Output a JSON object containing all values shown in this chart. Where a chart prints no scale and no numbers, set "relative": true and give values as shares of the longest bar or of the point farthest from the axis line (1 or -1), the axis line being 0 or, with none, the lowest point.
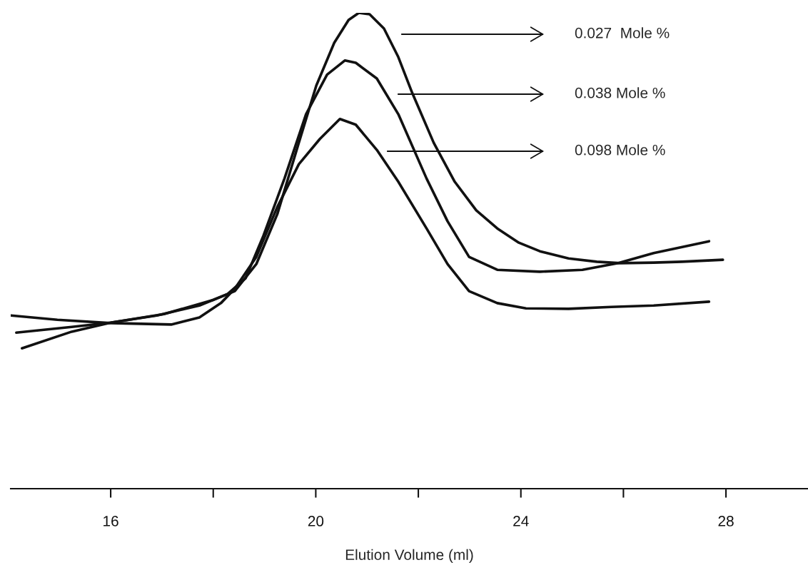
{
  "chart_data": {
    "type": "line",
    "relative": true,
    "xlabel": "Elution Volume (ml)",
    "xlim": [
      14.05,
      29.6
    ],
    "xticks": [
      {
        "value": 16,
        "label": "16"
      },
      {
        "value": 18,
        "label": null
      },
      {
        "value": 20,
        "label": "20"
      },
      {
        "value": 22,
        "label": null
      },
      {
        "value": 24,
        "label": "24"
      },
      {
        "value": 26,
        "label": null
      },
      {
        "value": 28,
        "label": "28"
      }
    ],
    "grid": false,
    "legend": false,
    "marker": "none",
    "line_style": "solid",
    "series": [
      {
        "color": "#111111",
        "x": [
          14.27,
          15.24,
          16,
          17.04,
          18.01,
          18.42,
          18.84,
          19.25,
          19.67,
          20.01,
          20.36,
          20.64,
          20.84,
          21.05,
          21.33,
          21.61,
          21.88,
          22.3,
          22.71,
          23.13,
          23.54,
          23.96,
          24.37,
          24.93,
          25.48,
          25.94,
          26.59,
          27.14,
          27.94
        ],
        "values": [
          0.295,
          0.33,
          0.349,
          0.367,
          0.397,
          0.415,
          0.472,
          0.577,
          0.727,
          0.847,
          0.937,
          0.985,
          1.0,
          0.997,
          0.967,
          0.907,
          0.832,
          0.727,
          0.645,
          0.585,
          0.547,
          0.517,
          0.499,
          0.484,
          0.477,
          0.474,
          0.475,
          0.477,
          0.481
        ]
      },
      {
        "color": "#111111",
        "x": [
          14.16,
          15.24,
          16,
          16.9,
          17.73,
          18.28,
          18.63,
          18.98,
          19.39,
          19.81,
          20.22,
          20.57,
          20.78,
          21.19,
          21.61,
          22.16,
          22.57,
          22.99,
          23.54,
          24.37,
          25.2,
          25.9,
          26.59,
          27.67
        ],
        "values": [
          0.328,
          0.34,
          0.349,
          0.364,
          0.385,
          0.409,
          0.442,
          0.532,
          0.652,
          0.787,
          0.87,
          0.9,
          0.895,
          0.862,
          0.787,
          0.652,
          0.562,
          0.487,
          0.46,
          0.456,
          0.46,
          0.474,
          0.495,
          0.52
        ]
      },
      {
        "color": "#111111",
        "x": [
          14.06,
          14.96,
          16,
          17.18,
          17.73,
          18.15,
          18.42,
          18.84,
          19.25,
          19.67,
          20.08,
          20.47,
          20.78,
          21.19,
          21.61,
          22.16,
          22.57,
          22.99,
          23.54,
          24.1,
          24.93,
          25.76,
          26.59,
          27.67
        ],
        "values": [
          0.364,
          0.355,
          0.348,
          0.345,
          0.36,
          0.39,
          0.42,
          0.487,
          0.592,
          0.682,
          0.735,
          0.777,
          0.765,
          0.712,
          0.645,
          0.547,
          0.472,
          0.415,
          0.39,
          0.379,
          0.378,
          0.382,
          0.385,
          0.393
        ]
      }
    ],
    "annotations": [
      "0.027  Mole %",
      "0.038 Mole %",
      "0.098 Mole %"
    ]
  }
}
